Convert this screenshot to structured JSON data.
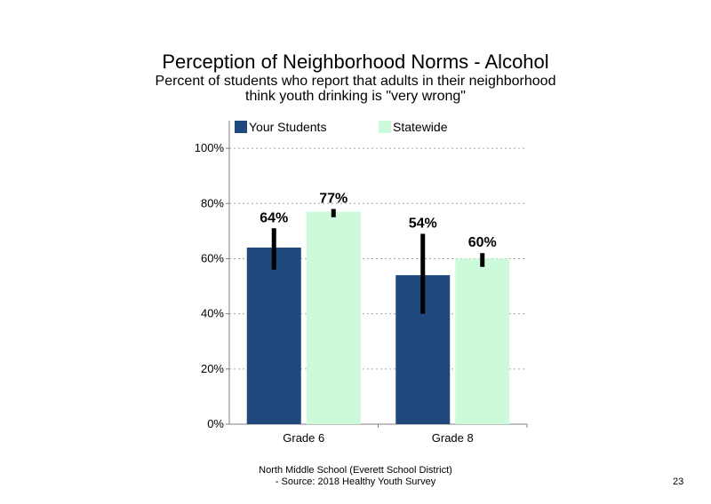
{
  "chart_data": {
    "type": "bar",
    "title": "Perception of Neighborhood Norms - Alcohol",
    "subtitle_lines": [
      "Percent of students who report that adults in their neighborhood",
      "think youth drinking is \"very wrong\""
    ],
    "categories": [
      "Grade 6",
      "Grade 8"
    ],
    "series": [
      {
        "name": "Your Students",
        "color": "#1f497d",
        "values": [
          64,
          54
        ],
        "labels": [
          "64%",
          "54%"
        ],
        "error_low": [
          56,
          40
        ],
        "error_high": [
          71,
          69
        ]
      },
      {
        "name": "Statewide",
        "color": "#ccfadb",
        "values": [
          77,
          60
        ],
        "labels": [
          "77%",
          "60%"
        ],
        "error_low": [
          75,
          57
        ],
        "error_high": [
          78,
          62
        ]
      }
    ],
    "ylim": [
      0,
      110
    ],
    "yticks": [
      0,
      20,
      40,
      60,
      80,
      100
    ],
    "ytick_labels": [
      "0%",
      "20%",
      "40%",
      "60%",
      "80%",
      "100%"
    ],
    "grid": true,
    "legend_position": "top"
  },
  "footer": {
    "line1": "North Middle School (Everett School District)",
    "line2": "- Source: 2018 Healthy Youth Survey"
  },
  "page_number": "23"
}
